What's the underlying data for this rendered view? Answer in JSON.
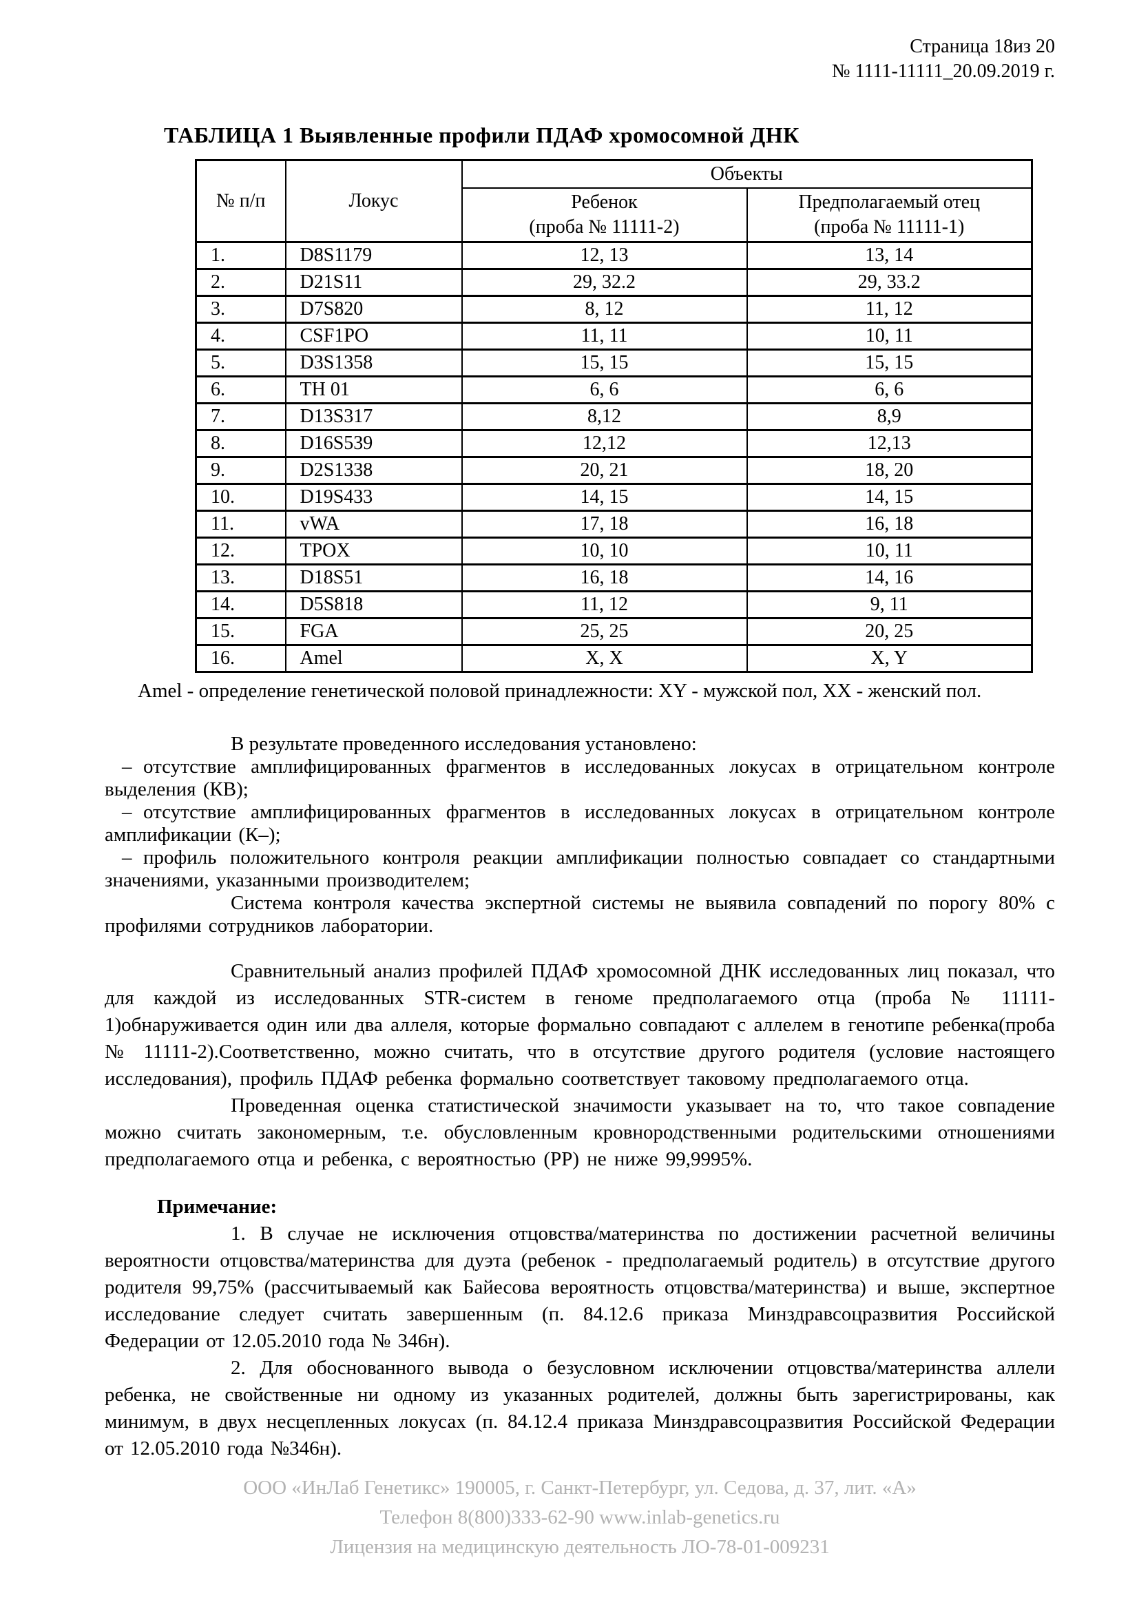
{
  "header": {
    "page_label": "Страница 18из 20",
    "doc_number": "№ 1111-11111_20.09.2019 г."
  },
  "table": {
    "title": "ТАБЛИЦА 1 Выявленные профили ПДАФ хромосомной ДНК",
    "headers": {
      "num": "№ п/п",
      "locus": "Локус",
      "objects_group": "Объекты",
      "child_line1": "Ребенок",
      "child_line2": "(проба № 11111-2)",
      "father_line1": "Предполагаемый отец",
      "father_line2": "(проба № 11111-1)"
    },
    "rows": [
      [
        "1.",
        "D8S1179",
        "12, 13",
        "13, 14"
      ],
      [
        "2.",
        "D21S11",
        "29, 32.2",
        "29, 33.2"
      ],
      [
        "3.",
        "D7S820",
        "8, 12",
        "11, 12"
      ],
      [
        "4.",
        "CSF1PO",
        "11, 11",
        "10, 11"
      ],
      [
        "5.",
        "D3S1358",
        "15, 15",
        "15, 15"
      ],
      [
        "6.",
        "TH 01",
        "6, 6",
        "6, 6"
      ],
      [
        "7.",
        "D13S317",
        "8,12",
        "8,9"
      ],
      [
        "8.",
        "D16S539",
        "12,12",
        "12,13"
      ],
      [
        "9.",
        "D2S1338",
        "20, 21",
        "18, 20"
      ],
      [
        "10.",
        "D19S433",
        "14, 15",
        "14, 15"
      ],
      [
        "11.",
        "vWA",
        "17, 18",
        "16, 18"
      ],
      [
        "12.",
        "TPOX",
        "10, 10",
        "10, 11"
      ],
      [
        "13.",
        "D18S51",
        "16, 18",
        "14, 16"
      ],
      [
        "14.",
        "D5S818",
        "11, 12",
        "9, 11"
      ],
      [
        "15.",
        "FGA",
        "25, 25",
        "20, 25"
      ],
      [
        "16.",
        "Amel",
        "X, X",
        "X, Y"
      ]
    ],
    "footnote": "Amel - определение генетической половой принадлежности: XY - мужской пол, XX - женский пол."
  },
  "results": {
    "intro": "В результате проведенного исследования установлено:",
    "dash": "–",
    "items": [
      "отсутствие амплифицированных фрагментов в исследованных локусах в отрицательном контроле выделения (КВ);",
      "отсутствие амплифицированных фрагментов в исследованных локусах в отрицательном контроле амплификации (К–);",
      "профиль положительного контроля реакции амплификации полностью совпадает со стандартными значениями, указанными производителем;"
    ],
    "qc": "Система контроля качества экспертной системы не выявила совпадений по порогу 80% с профилями сотрудников лаборатории."
  },
  "analysis": {
    "para1": "Сравнительный анализ профилей ПДАФ хромосомной ДНК исследованных лиц показал, что для каждой из исследованных STR-систем в геноме предполагаемого отца (проба № 11111-1)обнаруживается один или два аллеля, которые формально совпадают с аллелем в генотипе ребенка(проба № 11111-2).Соответственно, можно считать, что в отсутствие другого родителя (условие настоящего исследования), профиль ПДАФ ребенка формально соответствует таковому предполагаемого отца.",
    "para2": "Проведенная оценка статистической значимости указывает на то, что такое совпадение можно считать закономерным, т.е. обусловленным кровнородственными родительскими отношениями предполагаемого отца и ребенка, с вероятностью (РР) не ниже 99,9995%."
  },
  "notes": {
    "heading": "Примечание:",
    "note1": "1. В случае не исключения отцовства/материнства по достижении расчетной величины вероятности отцовства/материнства для дуэта (ребенок - предполагаемый родитель) в отсутствие другого родителя 99,75% (рассчитываемый как Байесова вероятность отцовства/материнства) и выше, экспертное исследование следует считать завершенным (п. 84.12.6 приказа Минздравсоцразвития Российской Федерации от 12.05.2010 года № 346н).",
    "note2": "2. Для обоснованного вывода о безусловном исключении отцовства/материнства аллели ребенка, не свойственные ни одному из указанных родителей, должны быть зарегистрированы, как минимум, в двух несцепленных локусах (п. 84.12.4 приказа Минздравсоцразвития Российской Федерации от 12.05.2010 года №346н)."
  },
  "footer": {
    "line1": "ООО «ИнЛаб Генетикс» 190005, г. Санкт-Петербург, ул. Седова, д. 37, лит. «А»",
    "line2": "Телефон 8(800)333-62-90 www.inlab-genetics.ru",
    "line3": "Лицензия на медицинскую деятельность ЛО-78-01-009231",
    "text_color": "#b2b2b2"
  }
}
